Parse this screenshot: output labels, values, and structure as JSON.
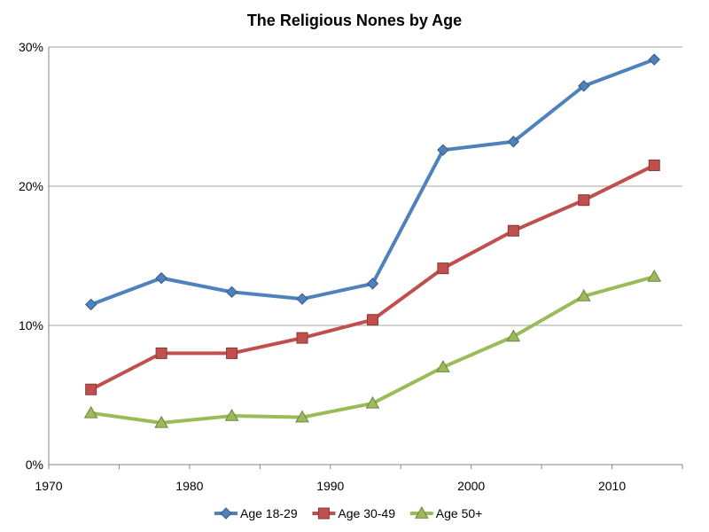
{
  "chart_data": {
    "type": "line",
    "title": "The Religious Nones by Age",
    "xlabel": "",
    "ylabel": "",
    "xlim": [
      1970,
      2015
    ],
    "ylim": [
      0,
      30
    ],
    "x_ticks": [
      1970,
      1980,
      1990,
      2000,
      2010
    ],
    "y_ticks": [
      0,
      10,
      20,
      30
    ],
    "y_tick_labels": [
      "0%",
      "10%",
      "20%",
      "30%"
    ],
    "grid": "horizontal",
    "legend_position": "bottom",
    "x": [
      1973,
      1978,
      1983,
      1988,
      1993,
      1998,
      2003,
      2008,
      2013
    ],
    "series": [
      {
        "name": "Age 18-29",
        "color": "#4f81bd",
        "marker": "diamond",
        "values": [
          11.5,
          13.4,
          12.4,
          11.9,
          13.0,
          22.6,
          23.2,
          27.2,
          29.1
        ]
      },
      {
        "name": "Age 30-49",
        "color": "#c0504d",
        "marker": "square",
        "values": [
          5.4,
          8.0,
          8.0,
          9.1,
          10.4,
          14.1,
          16.8,
          19.0,
          21.5
        ]
      },
      {
        "name": "Age 50+",
        "color": "#9bbb59",
        "marker": "triangle",
        "values": [
          3.7,
          3.0,
          3.5,
          3.4,
          4.4,
          7.0,
          9.2,
          12.1,
          13.5
        ]
      }
    ]
  }
}
